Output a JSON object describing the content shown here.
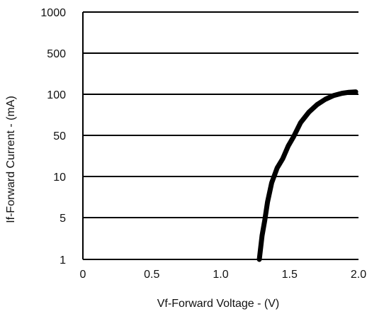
{
  "chart_data": {
    "type": "line",
    "xlabel": "Vf-Forward Voltage - (V)",
    "ylabel": "If-Forward Current - (mA)",
    "xlim": [
      0,
      2.0
    ],
    "x_ticks": [
      "0",
      "0.5",
      "1.0",
      "1.5",
      "2.0"
    ],
    "y_ticks": [
      "1000",
      "500",
      "100",
      "50",
      "10",
      "5",
      "1"
    ],
    "y_tick_values": [
      1000,
      500,
      100,
      50,
      10,
      5,
      1
    ],
    "y_scale": "categorical-spaced (equal spacing per tick)",
    "grid": "horizontal",
    "series": [
      {
        "x": [
          1.28,
          1.3,
          1.32,
          1.34,
          1.37,
          1.41,
          1.45,
          1.49,
          1.53,
          1.58,
          1.64,
          1.7,
          1.76,
          1.82,
          1.88,
          1.93,
          1.98
        ],
        "y": [
          1,
          2.5,
          4.5,
          6.5,
          9,
          14,
          20,
          33,
          48,
          62,
          74,
          84,
          92,
          98,
          104,
          108,
          110
        ],
        "color": "#000000"
      }
    ]
  }
}
